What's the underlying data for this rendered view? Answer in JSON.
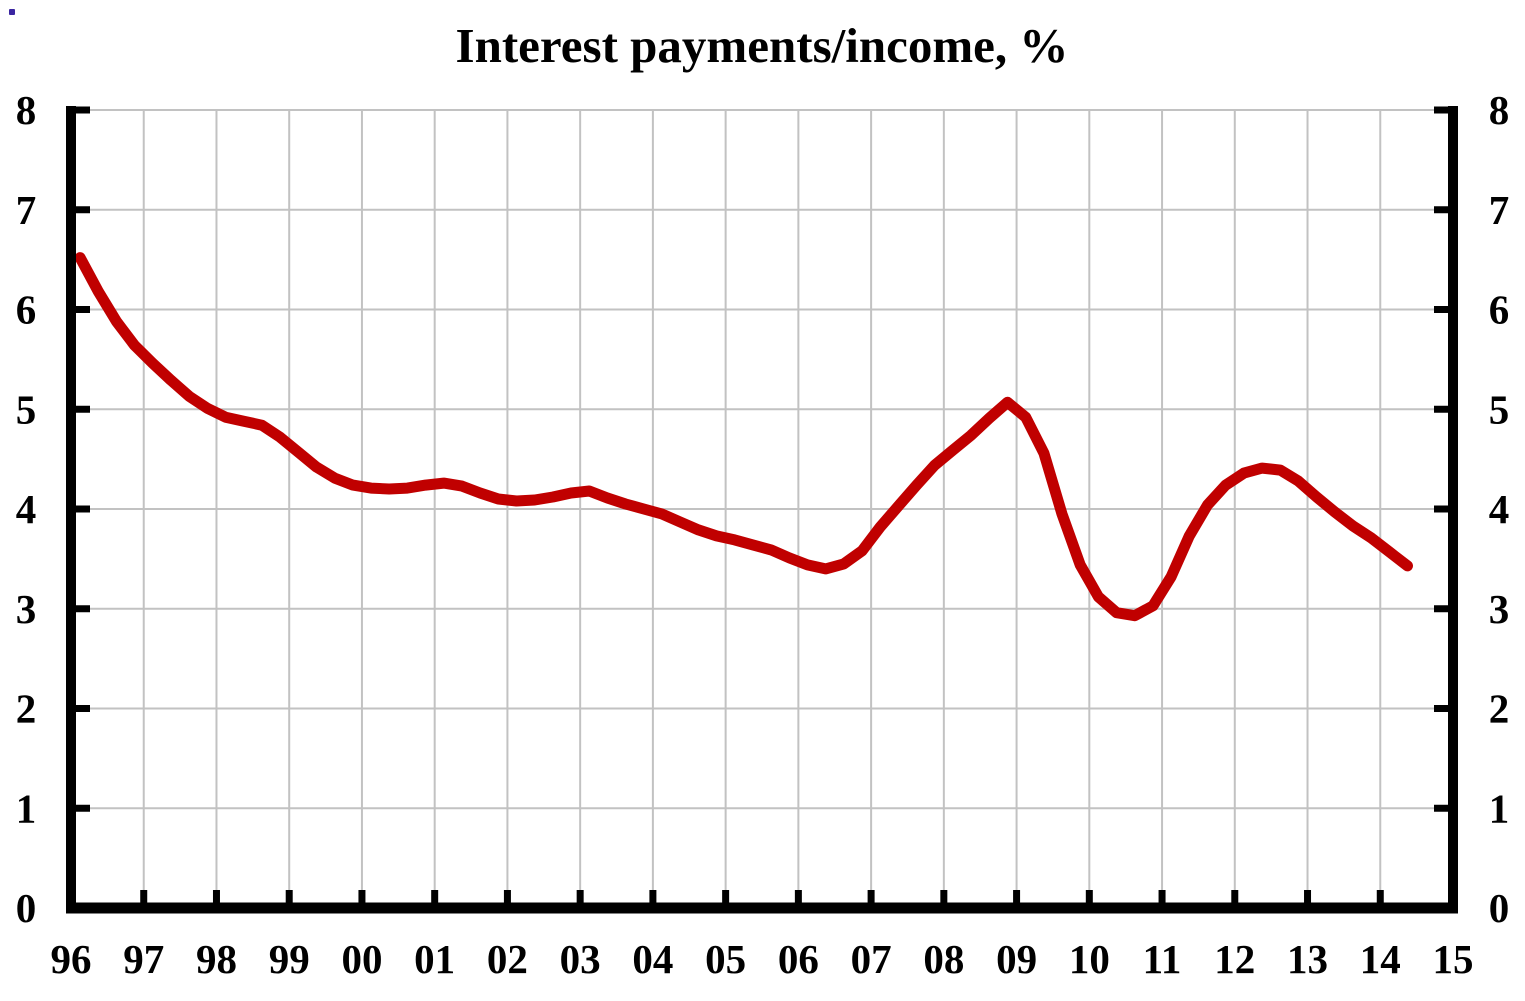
{
  "chart": {
    "title": "Interest payments/income, %",
    "y_axis_left": {
      "labels": [
        "8",
        "7",
        "6",
        "5",
        "4",
        "3",
        "2",
        "1",
        "0"
      ]
    },
    "y_axis_right": {
      "labels": [
        "8",
        "7",
        "6",
        "5",
        "4",
        "3",
        "2",
        "1",
        "0"
      ]
    },
    "x_axis": {
      "labels": [
        "96",
        "97",
        "98",
        "99",
        "00",
        "01",
        "02",
        "03",
        "04",
        "05",
        "06",
        "07",
        "08",
        "09",
        "10",
        "11",
        "12",
        "13",
        "14",
        "15"
      ]
    },
    "colors": {
      "line": "#c00000",
      "grid": "#c2c2c2",
      "axis": "#000000",
      "background": "#ffffff",
      "stray_artifact": "#3a25a1"
    }
  },
  "chart_data": {
    "type": "line",
    "title": "Interest payments/income, %",
    "xlabel": "",
    "ylabel": "",
    "ylim": [
      0,
      8
    ],
    "xlim": [
      1996,
      2015
    ],
    "grid": true,
    "legend": "none",
    "yticks": [
      0,
      1,
      2,
      3,
      4,
      5,
      6,
      7,
      8
    ],
    "xtick_years": [
      1996,
      1997,
      1998,
      1999,
      2000,
      2001,
      2002,
      2003,
      2004,
      2005,
      2006,
      2007,
      2008,
      2009,
      2010,
      2011,
      2012,
      2013,
      2014,
      2015
    ],
    "series_name": "Interest payments/income, %",
    "x": [
      1996.125,
      1996.375,
      1996.625,
      1996.875,
      1997.125,
      1997.375,
      1997.625,
      1997.875,
      1998.125,
      1998.375,
      1998.625,
      1998.875,
      1999.125,
      1999.375,
      1999.625,
      1999.875,
      2000.125,
      2000.375,
      2000.625,
      2000.875,
      2001.125,
      2001.375,
      2001.625,
      2001.875,
      2002.125,
      2002.375,
      2002.625,
      2002.875,
      2003.125,
      2003.375,
      2003.625,
      2003.875,
      2004.125,
      2004.375,
      2004.625,
      2004.875,
      2005.125,
      2005.375,
      2005.625,
      2005.875,
      2006.125,
      2006.375,
      2006.625,
      2006.875,
      2007.125,
      2007.375,
      2007.625,
      2007.875,
      2008.125,
      2008.375,
      2008.625,
      2008.875,
      2009.125,
      2009.375,
      2009.625,
      2009.875,
      2010.125,
      2010.375,
      2010.625,
      2010.875,
      2011.125,
      2011.375,
      2011.625,
      2011.875,
      2012.125,
      2012.375,
      2012.625,
      2012.875,
      2013.125,
      2013.375,
      2013.625,
      2013.875,
      2014.125,
      2014.375
    ],
    "values": [
      6.52,
      6.18,
      5.88,
      5.64,
      5.46,
      5.29,
      5.13,
      5.01,
      4.92,
      4.88,
      4.84,
      4.72,
      4.57,
      4.42,
      4.31,
      4.24,
      4.21,
      4.2,
      4.21,
      4.24,
      4.26,
      4.23,
      4.16,
      4.1,
      4.08,
      4.09,
      4.12,
      4.16,
      4.18,
      4.11,
      4.05,
      4.0,
      3.95,
      3.87,
      3.79,
      3.73,
      3.69,
      3.64,
      3.59,
      3.51,
      3.44,
      3.4,
      3.45,
      3.58,
      3.82,
      4.03,
      4.24,
      4.44,
      4.59,
      4.74,
      4.91,
      5.07,
      4.92,
      4.56,
      3.95,
      3.44,
      3.12,
      2.96,
      2.93,
      3.03,
      3.32,
      3.73,
      4.04,
      4.24,
      4.36,
      4.41,
      4.39,
      4.28,
      4.12,
      3.97,
      3.83,
      3.71,
      3.57,
      3.43
    ]
  }
}
